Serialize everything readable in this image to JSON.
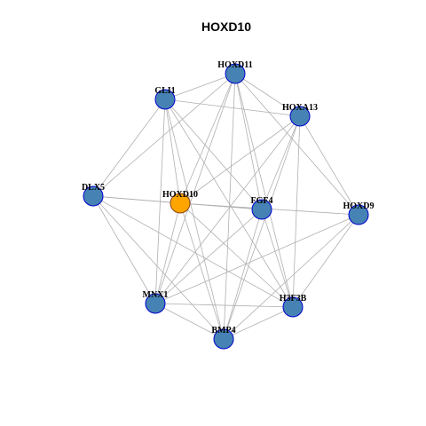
{
  "title": "HOXD10",
  "colors": {
    "focus_node_fill": "#FFA500",
    "focus_node_stroke": "#8B4513",
    "node_fill": "#4682B4",
    "node_stroke": "#0000CD",
    "edge": "#B0B0B0",
    "background": "#FFFFFF"
  },
  "network": {
    "focus": "HOXD10",
    "nodes": [
      {
        "id": "HOXD11",
        "label": "HOXD11",
        "focus": false
      },
      {
        "id": "GLI1",
        "label": "GLI1",
        "focus": false
      },
      {
        "id": "HOXA13",
        "label": "HOXA13",
        "focus": false
      },
      {
        "id": "DLX5",
        "label": "DLX5",
        "focus": false
      },
      {
        "id": "HOXD10",
        "label": "HOXD10",
        "focus": true
      },
      {
        "id": "FGF4",
        "label": "FGF4",
        "focus": false
      },
      {
        "id": "HOXD9",
        "label": "HOXD9",
        "focus": false
      },
      {
        "id": "MNX1",
        "label": "MNX1",
        "focus": false
      },
      {
        "id": "H3F3B",
        "label": "H3F3B",
        "focus": false
      },
      {
        "id": "BMP4",
        "label": "BMP4",
        "focus": false
      }
    ],
    "edges": [
      [
        "HOXD11",
        "GLI1"
      ],
      [
        "HOXD11",
        "HOXA13"
      ],
      [
        "HOXD11",
        "DLX5"
      ],
      [
        "HOXD11",
        "HOXD10"
      ],
      [
        "HOXD11",
        "FGF4"
      ],
      [
        "HOXD11",
        "HOXD9"
      ],
      [
        "HOXD11",
        "MNX1"
      ],
      [
        "HOXD11",
        "H3F3B"
      ],
      [
        "HOXD11",
        "BMP4"
      ],
      [
        "GLI1",
        "HOXA13"
      ],
      [
        "GLI1",
        "DLX5"
      ],
      [
        "GLI1",
        "HOXD10"
      ],
      [
        "GLI1",
        "FGF4"
      ],
      [
        "GLI1",
        "MNX1"
      ],
      [
        "GLI1",
        "H3F3B"
      ],
      [
        "GLI1",
        "BMP4"
      ],
      [
        "HOXA13",
        "HOXD10"
      ],
      [
        "HOXA13",
        "FGF4"
      ],
      [
        "HOXA13",
        "HOXD9"
      ],
      [
        "HOXA13",
        "MNX1"
      ],
      [
        "HOXA13",
        "H3F3B"
      ],
      [
        "HOXA13",
        "BMP4"
      ],
      [
        "DLX5",
        "HOXD10"
      ],
      [
        "DLX5",
        "FGF4"
      ],
      [
        "DLX5",
        "MNX1"
      ],
      [
        "DLX5",
        "H3F3B"
      ],
      [
        "DLX5",
        "BMP4"
      ],
      [
        "HOXD10",
        "FGF4"
      ],
      [
        "HOXD10",
        "HOXD9"
      ],
      [
        "HOXD10",
        "MNX1"
      ],
      [
        "HOXD10",
        "H3F3B"
      ],
      [
        "HOXD10",
        "BMP4"
      ],
      [
        "FGF4",
        "MNX1"
      ],
      [
        "FGF4",
        "H3F3B"
      ],
      [
        "FGF4",
        "BMP4"
      ],
      [
        "HOXD9",
        "MNX1"
      ],
      [
        "HOXD9",
        "H3F3B"
      ],
      [
        "HOXD9",
        "BMP4"
      ],
      [
        "MNX1",
        "H3F3B"
      ],
      [
        "MNX1",
        "BMP4"
      ],
      [
        "H3F3B",
        "BMP4"
      ]
    ]
  }
}
